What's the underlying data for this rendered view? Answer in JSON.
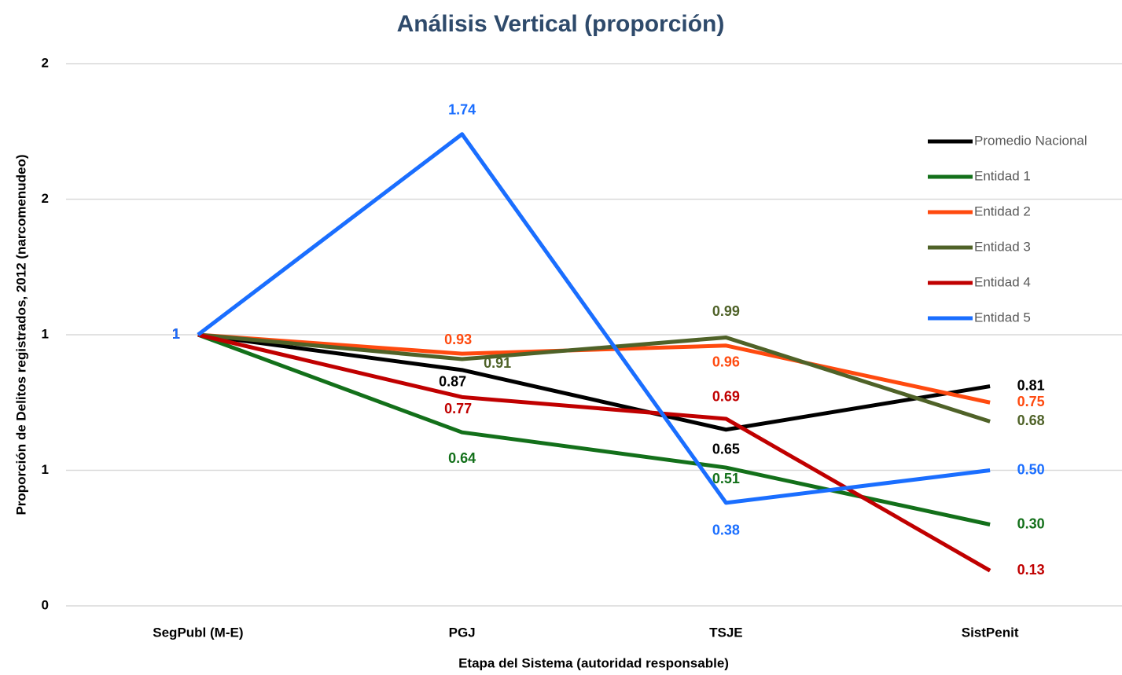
{
  "chart_data": {
    "type": "line",
    "title": "Análisis Vertical (proporción)",
    "x_label": "Etapa del Sistema (autoridad responsable)",
    "y_label": "Proporción de Delitos registrados, 2012 (narcomenudeo)",
    "categories": [
      "SegPubl (M-E)",
      "PGJ",
      "TSJE",
      "SistPenit"
    ],
    "ylim": [
      0,
      2
    ],
    "yticks": [
      0,
      {
        "value": 0.5,
        "label": "1"
      },
      1,
      {
        "value": 1.5,
        "label": "2"
      },
      2
    ],
    "grid": true,
    "legend": "right",
    "series": [
      {
        "name": "Promedio Nacional",
        "color": "#000000",
        "values": [
          1,
          0.87,
          0.65,
          0.81
        ]
      },
      {
        "name": "Entidad 1",
        "color": "#13701a",
        "values": [
          1,
          0.64,
          0.51,
          0.3
        ],
        "value_labels": [
          "1",
          "0.64",
          "0.51",
          "0.30"
        ]
      },
      {
        "name": "Entidad 2",
        "color": "#ff4a0f",
        "values": [
          1,
          0.93,
          0.96,
          0.75
        ]
      },
      {
        "name": "Entidad 3",
        "color": "#4f6228",
        "values": [
          1,
          0.91,
          0.99,
          0.68
        ]
      },
      {
        "name": "Entidad 4",
        "color": "#c00000",
        "values": [
          1,
          0.77,
          0.69,
          0.13
        ]
      },
      {
        "name": "Entidad 5",
        "color": "#1a6eff",
        "values": [
          1,
          1.74,
          0.38,
          0.5
        ],
        "value_labels": [
          "1",
          "1.74",
          "0.38",
          "0.50"
        ]
      }
    ]
  }
}
